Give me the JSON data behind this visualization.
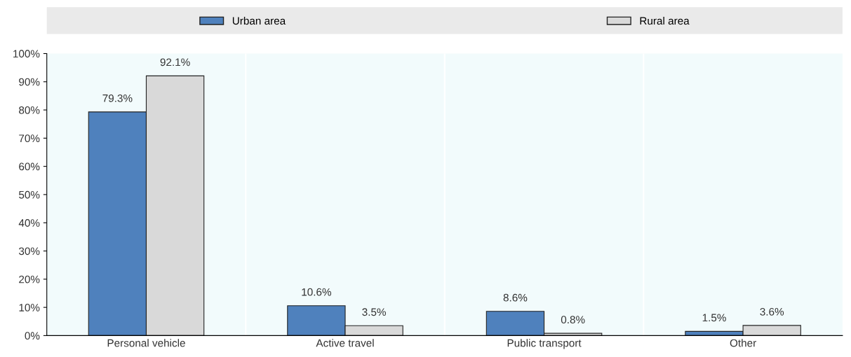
{
  "chart_data": {
    "type": "bar",
    "categories": [
      "Personal vehicle",
      "Active travel",
      "Public transport",
      "Other"
    ],
    "series": [
      {
        "name": "Urban area",
        "color": "#4f81bd",
        "values": [
          79.3,
          10.6,
          8.6,
          1.5
        ],
        "value_labels": [
          "79.3%",
          "10.6%",
          "8.6%",
          "1.5%"
        ]
      },
      {
        "name": "Rural area",
        "color": "#d9d9d9",
        "values": [
          92.1,
          3.5,
          0.8,
          3.6
        ],
        "value_labels": [
          "92.1%",
          "3.5%",
          "0.8%",
          "3.6%"
        ]
      }
    ],
    "ylim": [
      0,
      100
    ],
    "yticks": [
      {
        "value": 0,
        "label": "0%"
      },
      {
        "value": 10,
        "label": "10%"
      },
      {
        "value": 20,
        "label": "20%"
      },
      {
        "value": 30,
        "label": "30%"
      },
      {
        "value": 40,
        "label": "40%"
      },
      {
        "value": 50,
        "label": "50%"
      },
      {
        "value": 60,
        "label": "60%"
      },
      {
        "value": 70,
        "label": "70%"
      },
      {
        "value": 80,
        "label": "80%"
      },
      {
        "value": 90,
        "label": "90%"
      },
      {
        "value": 100,
        "label": "100%"
      }
    ],
    "legend": "top",
    "grid": false
  }
}
